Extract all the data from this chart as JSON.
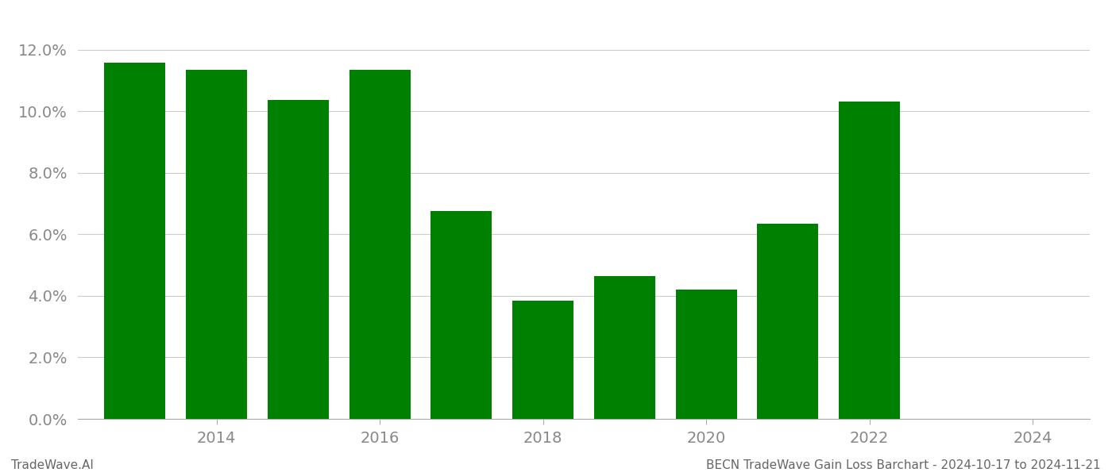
{
  "years": [
    2013,
    2014,
    2015,
    2016,
    2017,
    2018,
    2019,
    2020,
    2021,
    2022,
    2023
  ],
  "values": [
    0.1158,
    0.1135,
    0.1037,
    0.1135,
    0.0675,
    0.0385,
    0.0465,
    0.042,
    0.0635,
    0.1032,
    0.0
  ],
  "bar_color": "#008000",
  "title": "BECN TradeWave Gain Loss Barchart - 2024-10-17 to 2024-11-21",
  "watermark": "TradeWave.AI",
  "ylim_max": 0.13,
  "yticks": [
    0.0,
    0.02,
    0.04,
    0.06,
    0.08,
    0.1,
    0.12
  ],
  "xticks": [
    2014,
    2016,
    2018,
    2020,
    2022,
    2024
  ],
  "xlim_min": 2012.3,
  "xlim_max": 2024.7,
  "background_color": "#ffffff",
  "grid_color": "#cccccc",
  "bar_width": 0.75,
  "title_fontsize": 11,
  "watermark_fontsize": 11,
  "tick_fontsize": 14,
  "tick_color": "#888888",
  "spine_color": "#aaaaaa"
}
